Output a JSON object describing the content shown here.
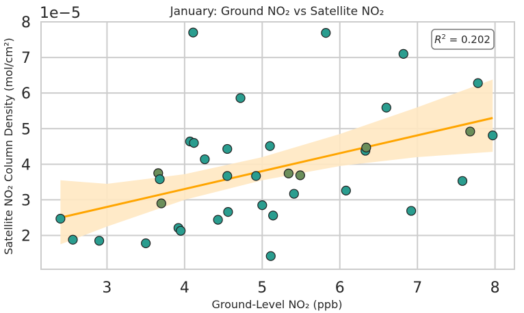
{
  "chart_data": {
    "type": "scatter",
    "title": "January: Ground NO₂ vs Satellite NO₂",
    "xlabel": "Ground-Level NO₂ (ppb)",
    "ylabel": "Satellite NO₂ Column Density (mol/cm²)",
    "y_offset_label": "1e−5",
    "annotation": {
      "r2_label": "R",
      "r2_value": " = 0.202"
    },
    "xlim": [
      2.15,
      8.25
    ],
    "ylim": [
      1.05,
      8.0
    ],
    "x_ticks": [
      3,
      4,
      5,
      6,
      7,
      8
    ],
    "y_ticks": [
      2,
      3,
      4,
      5,
      6,
      7,
      8
    ],
    "grid": true,
    "colors": {
      "point_fill": "#2a9d8f",
      "point_fill_olive": "#6b8e5a",
      "point_edge": "#1f1f1f",
      "regression_line": "#ffa500",
      "confidence_band": "#ffe8c2",
      "grid": "#cccccc",
      "axes": "#cccccc"
    },
    "regression": {
      "x_start": 2.4,
      "x_end": 7.97,
      "y_start": 2.5,
      "y_end": 5.3
    },
    "confidence_band": {
      "x": [
        2.4,
        3.0,
        4.0,
        5.0,
        6.0,
        7.0,
        7.97
      ],
      "lower": [
        1.75,
        2.25,
        3.0,
        3.55,
        3.95,
        4.2,
        4.35
      ],
      "upper": [
        3.55,
        3.45,
        3.72,
        4.2,
        4.85,
        5.6,
        6.38
      ]
    },
    "points": [
      {
        "x": 2.4,
        "y": 2.47
      },
      {
        "x": 2.56,
        "y": 1.88
      },
      {
        "x": 2.9,
        "y": 1.85
      },
      {
        "x": 3.5,
        "y": 1.78
      },
      {
        "x": 3.66,
        "y": 3.75,
        "olive": true
      },
      {
        "x": 3.68,
        "y": 3.58
      },
      {
        "x": 3.7,
        "y": 2.9,
        "olive": true
      },
      {
        "x": 3.92,
        "y": 2.21
      },
      {
        "x": 3.95,
        "y": 2.13
      },
      {
        "x": 4.07,
        "y": 4.64
      },
      {
        "x": 4.12,
        "y": 4.6
      },
      {
        "x": 4.11,
        "y": 7.7
      },
      {
        "x": 4.26,
        "y": 4.14
      },
      {
        "x": 4.43,
        "y": 2.44
      },
      {
        "x": 4.55,
        "y": 4.43
      },
      {
        "x": 4.55,
        "y": 3.67
      },
      {
        "x": 4.56,
        "y": 2.66
      },
      {
        "x": 4.72,
        "y": 5.86
      },
      {
        "x": 4.92,
        "y": 3.67
      },
      {
        "x": 5.0,
        "y": 2.85
      },
      {
        "x": 5.1,
        "y": 4.51
      },
      {
        "x": 5.11,
        "y": 1.42
      },
      {
        "x": 5.14,
        "y": 2.56
      },
      {
        "x": 5.34,
        "y": 3.74,
        "olive": true
      },
      {
        "x": 5.41,
        "y": 3.17
      },
      {
        "x": 5.49,
        "y": 3.69,
        "olive": true
      },
      {
        "x": 5.82,
        "y": 7.69
      },
      {
        "x": 6.08,
        "y": 3.26
      },
      {
        "x": 6.33,
        "y": 4.38
      },
      {
        "x": 6.34,
        "y": 4.47,
        "olive": true
      },
      {
        "x": 6.6,
        "y": 5.59
      },
      {
        "x": 6.82,
        "y": 7.1
      },
      {
        "x": 6.92,
        "y": 2.69
      },
      {
        "x": 7.58,
        "y": 3.53
      },
      {
        "x": 7.68,
        "y": 4.92,
        "olive": true
      },
      {
        "x": 7.78,
        "y": 6.28
      },
      {
        "x": 7.97,
        "y": 4.81
      }
    ]
  }
}
